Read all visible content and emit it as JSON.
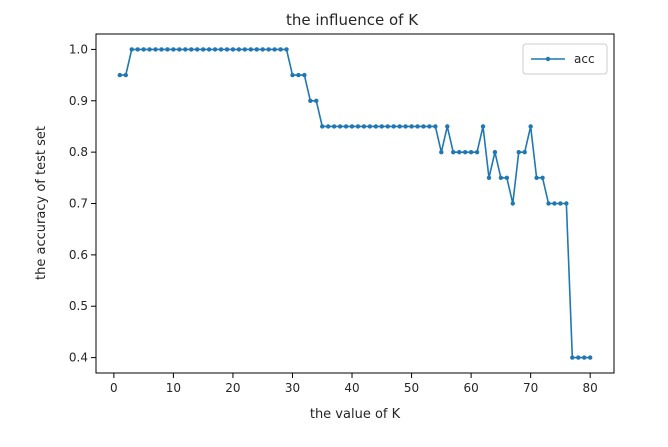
{
  "chart_data": {
    "type": "line",
    "title": "the influence of K",
    "xlabel": "the value of K",
    "ylabel": "the accuracy of test set",
    "xlim": [
      -3,
      84
    ],
    "ylim": [
      0.37,
      1.03
    ],
    "xticks": [
      0,
      10,
      20,
      30,
      40,
      50,
      60,
      70,
      80
    ],
    "yticks": [
      0.4,
      0.5,
      0.6,
      0.7,
      0.8,
      0.9,
      1.0
    ],
    "ytick_labels": [
      "0.4",
      "0.5",
      "0.6",
      "0.7",
      "0.8",
      "0.9",
      "1.0"
    ],
    "grid": false,
    "legend_position": "top-right",
    "series": [
      {
        "name": "acc",
        "color": "#1f77b4",
        "x": [
          1,
          2,
          3,
          4,
          5,
          6,
          7,
          8,
          9,
          10,
          11,
          12,
          13,
          14,
          15,
          16,
          17,
          18,
          19,
          20,
          21,
          22,
          23,
          24,
          25,
          26,
          27,
          28,
          29,
          30,
          31,
          32,
          33,
          34,
          35,
          36,
          37,
          38,
          39,
          40,
          41,
          42,
          43,
          44,
          45,
          46,
          47,
          48,
          49,
          50,
          51,
          52,
          53,
          54,
          55,
          56,
          57,
          58,
          59,
          60,
          61,
          62,
          63,
          64,
          65,
          66,
          67,
          68,
          69,
          70,
          71,
          72,
          73,
          74,
          75,
          76,
          77,
          78,
          79,
          80
        ],
        "y": [
          0.95,
          0.95,
          1.0,
          1.0,
          1.0,
          1.0,
          1.0,
          1.0,
          1.0,
          1.0,
          1.0,
          1.0,
          1.0,
          1.0,
          1.0,
          1.0,
          1.0,
          1.0,
          1.0,
          1.0,
          1.0,
          1.0,
          1.0,
          1.0,
          1.0,
          1.0,
          1.0,
          1.0,
          1.0,
          0.95,
          0.95,
          0.95,
          0.9,
          0.9,
          0.85,
          0.85,
          0.85,
          0.85,
          0.85,
          0.85,
          0.85,
          0.85,
          0.85,
          0.85,
          0.85,
          0.85,
          0.85,
          0.85,
          0.85,
          0.85,
          0.85,
          0.85,
          0.85,
          0.85,
          0.8,
          0.85,
          0.8,
          0.8,
          0.8,
          0.8,
          0.8,
          0.85,
          0.75,
          0.8,
          0.75,
          0.75,
          0.7,
          0.8,
          0.8,
          0.85,
          0.75,
          0.75,
          0.7,
          0.7,
          0.7,
          0.7,
          0.4,
          0.4,
          0.4,
          0.4
        ]
      }
    ]
  }
}
